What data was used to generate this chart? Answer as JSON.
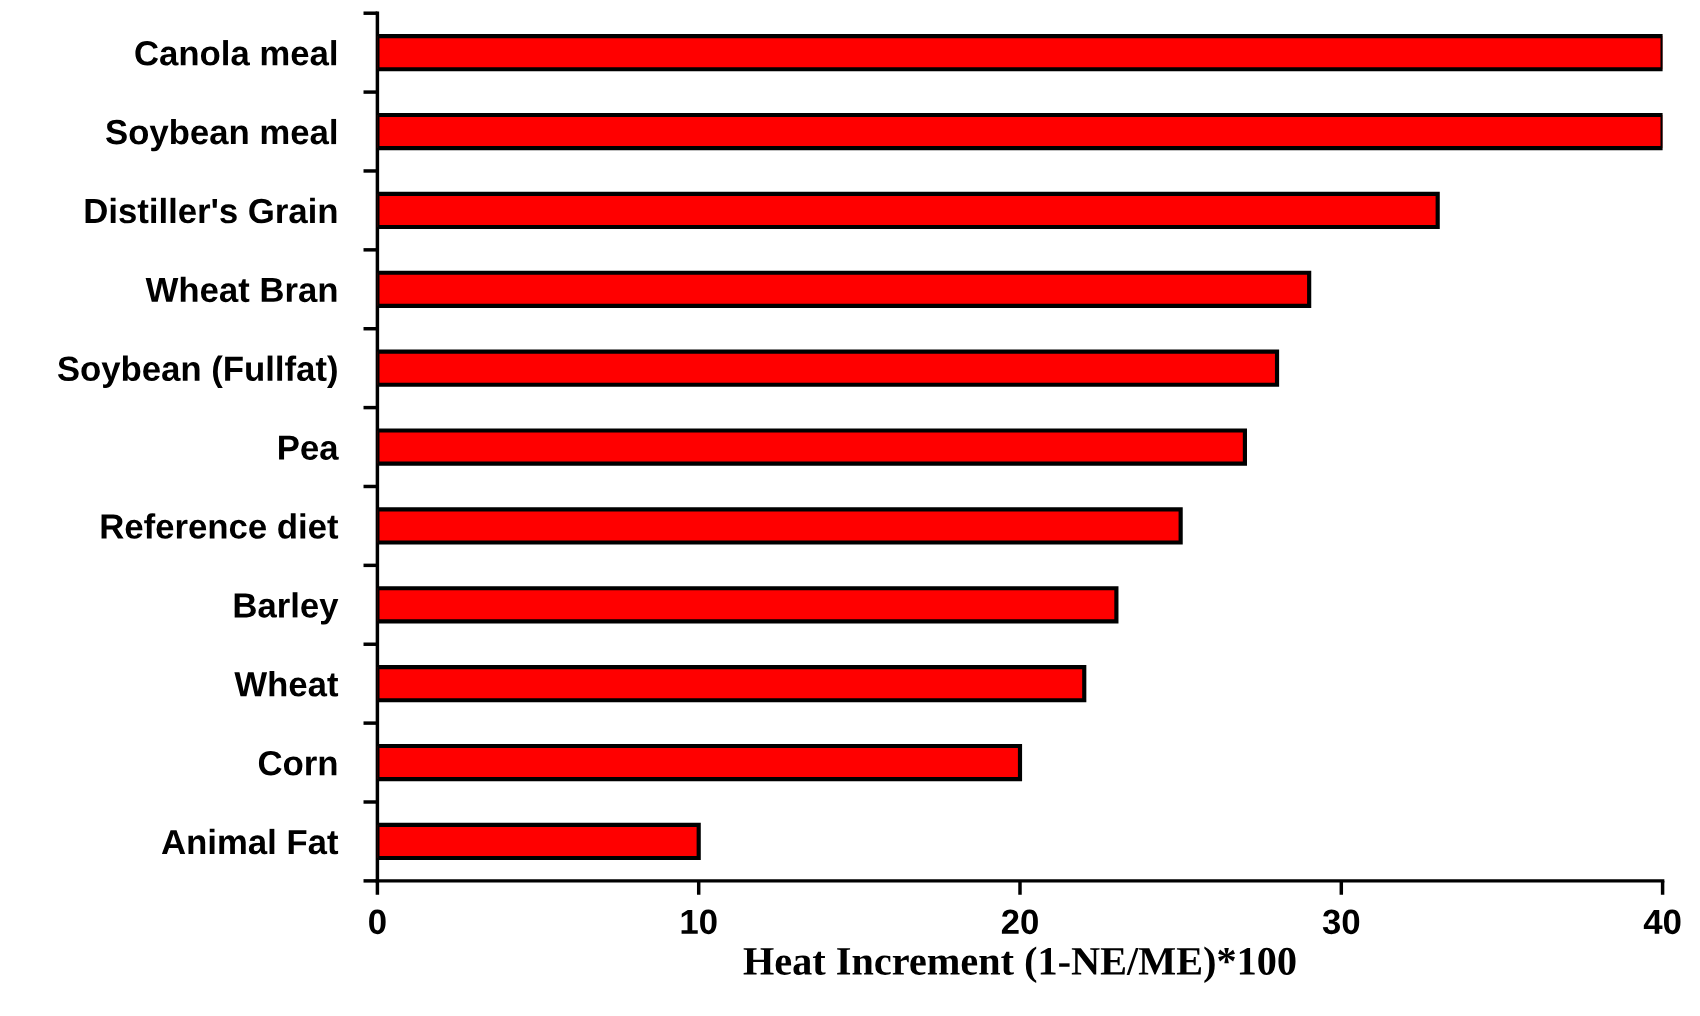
{
  "chart_data": {
    "type": "bar",
    "orientation": "horizontal",
    "xlabel": "Heat Increment (1-NE/ME)*100",
    "categories": [
      "Canola meal",
      "Soybean meal",
      "Distiller's Grain",
      "Wheat Bran",
      "Soybean (Fullfat)",
      "Pea",
      "Reference diet",
      "Barley",
      "Wheat",
      "Corn",
      "Animal Fat"
    ],
    "values": [
      40,
      40,
      33,
      29,
      28,
      27,
      25,
      23,
      22,
      20,
      10
    ],
    "color": "#ff0000",
    "xlim": [
      0,
      40
    ],
    "xticks": [
      0,
      10,
      20,
      30,
      40
    ],
    "grid": false,
    "legend": false
  }
}
